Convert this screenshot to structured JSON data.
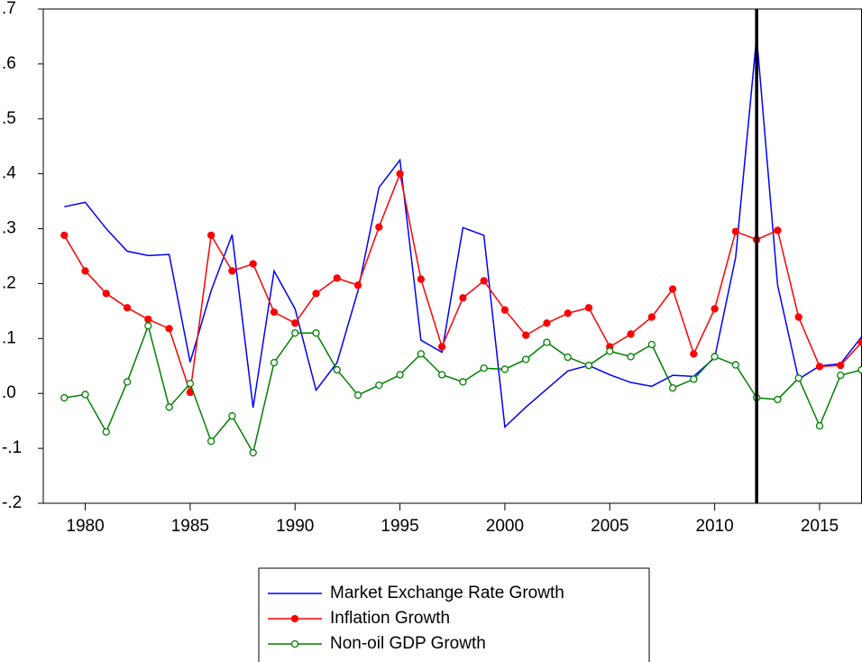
{
  "chart_data": {
    "type": "line",
    "x": [
      1979,
      1980,
      1981,
      1982,
      1983,
      1984,
      1985,
      1986,
      1987,
      1988,
      1989,
      1990,
      1991,
      1992,
      1993,
      1994,
      1995,
      1996,
      1997,
      1998,
      1999,
      2000,
      2001,
      2002,
      2003,
      2004,
      2005,
      2006,
      2007,
      2008,
      2009,
      2010,
      2011,
      2012,
      2013,
      2014,
      2015,
      2016,
      2017
    ],
    "series": [
      {
        "name": "Market Exchange Rate Growth",
        "color": "#0000ff",
        "marker": "none",
        "values": [
          0.34,
          0.348,
          0.3,
          0.259,
          0.251,
          0.253,
          0.057,
          0.187,
          0.289,
          -0.026,
          0.223,
          0.154,
          0.006,
          0.056,
          0.187,
          0.375,
          0.425,
          0.097,
          0.075,
          0.302,
          0.288,
          -0.061,
          -0.025,
          0.008,
          0.041,
          0.051,
          0.034,
          0.02,
          0.013,
          0.033,
          0.031,
          0.065,
          0.248,
          0.65,
          0.197,
          0.026,
          0.05,
          0.054,
          0.103
        ]
      },
      {
        "name": "Inflation Growth",
        "color": "#ff0000",
        "marker": "filled",
        "values": [
          0.288,
          0.223,
          0.182,
          0.156,
          0.135,
          0.118,
          0.002,
          0.288,
          0.223,
          0.236,
          0.148,
          0.128,
          0.182,
          0.21,
          0.197,
          0.303,
          0.4,
          0.208,
          0.085,
          0.174,
          0.205,
          0.152,
          0.106,
          0.128,
          0.146,
          0.156,
          0.085,
          0.108,
          0.139,
          0.19,
          0.072,
          0.154,
          0.295,
          0.28,
          0.297,
          0.139,
          0.049,
          0.051,
          0.093
        ]
      },
      {
        "name": "Non-oil GDP Growth",
        "color": "#008000",
        "marker": "open",
        "values": [
          -0.008,
          -0.002,
          -0.07,
          0.021,
          0.123,
          -0.025,
          0.018,
          -0.087,
          -0.041,
          -0.108,
          0.056,
          0.11,
          0.11,
          0.043,
          -0.003,
          0.015,
          0.034,
          0.072,
          0.034,
          0.021,
          0.046,
          0.044,
          0.062,
          0.093,
          0.066,
          0.051,
          0.077,
          0.067,
          0.089,
          0.01,
          0.026,
          0.067,
          0.052,
          -0.008,
          -0.011,
          0.028,
          -0.059,
          0.033,
          0.043
        ]
      }
    ],
    "xlim": [
      1978,
      2017
    ],
    "xticks": [
      1980,
      1985,
      1990,
      1995,
      2000,
      2005,
      2010,
      2015
    ],
    "ylim": [
      -0.2,
      0.7
    ],
    "yticks": [
      {
        "value": -0.2,
        "label": "-.2"
      },
      {
        "value": -0.1,
        "label": "-.1"
      },
      {
        "value": 0,
        "label": ".0"
      },
      {
        "value": 0.1,
        "label": ".1"
      },
      {
        "value": 0.2,
        "label": ".2"
      },
      {
        "value": 0.3,
        "label": ".3"
      },
      {
        "value": 0.4,
        "label": ".4"
      },
      {
        "value": 0.5,
        "label": ".5"
      },
      {
        "value": 0.6,
        "label": ".6"
      },
      {
        "value": 0.7,
        "label": ".7"
      }
    ],
    "vline": {
      "x": 2012,
      "color": "#000000"
    },
    "legend": "bottom"
  }
}
